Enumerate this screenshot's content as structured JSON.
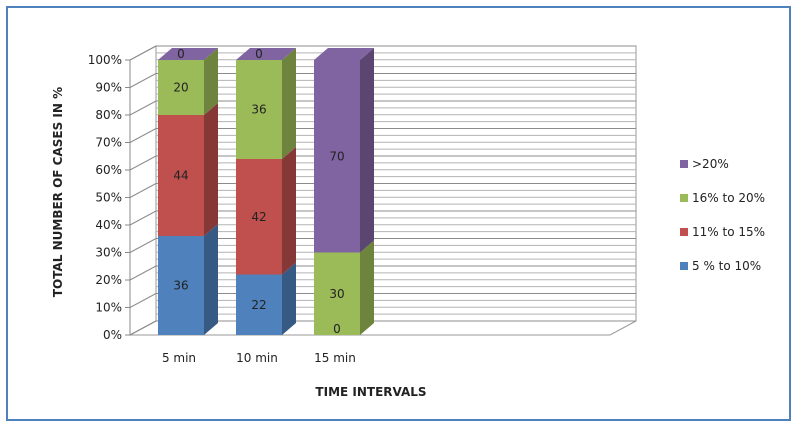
{
  "chart_data": {
    "type": "bar",
    "stacked": true,
    "percent_stacked": true,
    "three_d": true,
    "categories": [
      "5 min",
      "10 min",
      "15 min"
    ],
    "series": [
      {
        "name": "5 % to 10%",
        "values": [
          36,
          22,
          0
        ],
        "color": "#4f81bd"
      },
      {
        "name": "11% to 15%",
        "values": [
          44,
          42,
          0
        ],
        "color": "#c0504d"
      },
      {
        "name": "16% to 20%",
        "values": [
          20,
          36,
          30
        ],
        "color": "#9bbb59"
      },
      {
        "name": ">20%",
        "values": [
          0,
          0,
          70
        ],
        "color": "#8064a2"
      }
    ],
    "data_labels": [
      [
        "36",
        "22",
        "0"
      ],
      [
        "44",
        "42",
        ""
      ],
      [
        "20",
        "36",
        "30"
      ],
      [
        "0",
        "0",
        "70"
      ]
    ],
    "xlabel": "TIME INTERVALS",
    "ylabel": "TOTAL NUMBER OF CASES IN %",
    "ylim": [
      0,
      100
    ],
    "y_ticks": [
      "0%",
      "10%",
      "20%",
      "30%",
      "40%",
      "50%",
      "60%",
      "70%",
      "80%",
      "90%",
      "100%"
    ],
    "grid": true,
    "legend_position": "right",
    "legend_order": [
      ">20%",
      "16% to 20%",
      "11% to 15%",
      "5 % to 10%"
    ]
  }
}
